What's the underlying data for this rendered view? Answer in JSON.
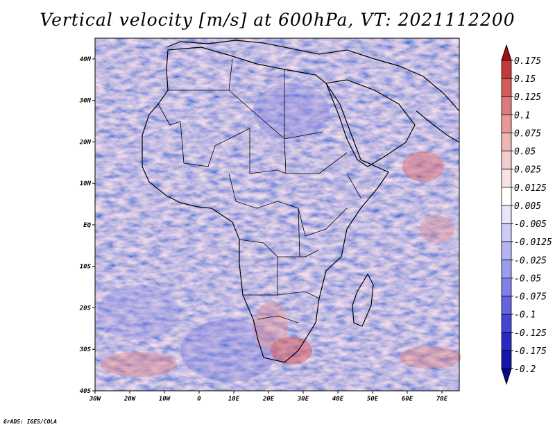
{
  "title": "Vertical velocity [m/s] at 600hPa, VT: 2021112200",
  "credit": "GrADS: IGES/COLA",
  "map": {
    "region": "Africa",
    "lon_labels": [
      "30W",
      "20W",
      "10W",
      "0",
      "10E",
      "20E",
      "30E",
      "40E",
      "50E",
      "60E",
      "70E"
    ],
    "lat_labels": [
      "40N",
      "30N",
      "20N",
      "10N",
      "EQ",
      "10S",
      "20S",
      "30S",
      "40S"
    ],
    "lon_range": [
      -30,
      75
    ],
    "lat_range": [
      -40,
      45
    ]
  },
  "colorbar": {
    "labels": [
      "0.175",
      "0.15",
      "0.125",
      "0.1",
      "0.075",
      "0.05",
      "0.025",
      "0.0125",
      "0.005",
      "-0.005",
      "-0.0125",
      "-0.025",
      "-0.05",
      "-0.075",
      "-0.1",
      "-0.125",
      "-0.175",
      "-0.2"
    ],
    "colors": [
      "#a01212",
      "#c33a3a",
      "#d65c5c",
      "#e07a7a",
      "#e89898",
      "#efb4b4",
      "#f5cccc",
      "#fae2e2",
      "#ffffff",
      "#e6e6fb",
      "#ccccf7",
      "#b4b4f3",
      "#9c9cef",
      "#8080e8",
      "#6464df",
      "#4646d2",
      "#2a2ac0",
      "#1515a8",
      "#06068f"
    ]
  }
}
